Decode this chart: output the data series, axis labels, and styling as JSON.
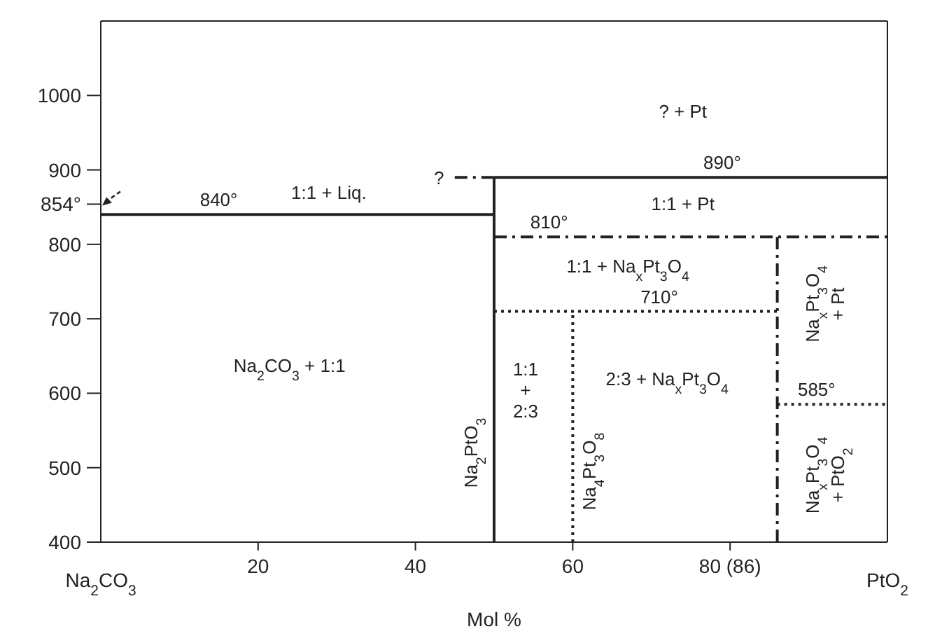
{
  "chart_data": {
    "type": "line",
    "xlabel": "Mol %",
    "xlim": [
      0,
      100
    ],
    "ylim": [
      400,
      1100
    ],
    "xticks": [
      20,
      40,
      60,
      {
        "value": 80,
        "label": "80 (86)"
      }
    ],
    "yticks": [
      400,
      500,
      600,
      700,
      800,
      {
        "value": 854,
        "label": "854°"
      },
      900,
      1000
    ],
    "marker": "none",
    "grid": false,
    "series": [
      {
        "color": "#222222",
        "line_style": "solid",
        "x": [
          0,
          50
        ],
        "values": [
          840,
          840
        ]
      },
      {
        "color": "#222222",
        "line_style": "solid",
        "x": [
          50,
          50
        ],
        "values": [
          400,
          890
        ]
      },
      {
        "color": "#222222",
        "line_style": "solid",
        "x": [
          50,
          100
        ],
        "values": [
          890,
          890
        ]
      },
      {
        "color": "#222222",
        "line_style": "dashed",
        "x": [
          45,
          50
        ],
        "values": [
          890,
          890
        ]
      },
      {
        "color": "#222222",
        "line_style": "dashed",
        "x": [
          50,
          100
        ],
        "values": [
          810,
          810
        ]
      },
      {
        "color": "#222222",
        "line_style": "dotted",
        "x": [
          50,
          86
        ],
        "values": [
          710,
          710
        ]
      },
      {
        "color": "#222222",
        "line_style": "dotted",
        "x": [
          60,
          60
        ],
        "values": [
          400,
          710
        ]
      },
      {
        "color": "#222222",
        "line_style": "dashed",
        "x": [
          86,
          86
        ],
        "values": [
          400,
          810
        ]
      },
      {
        "color": "#222222",
        "line_style": "dotted",
        "x": [
          86,
          100
        ],
        "values": [
          585,
          585
        ]
      }
    ],
    "annotations": [
      "? + Pt",
      {
        "text": "890°",
        "x": 79,
        "y": 890
      },
      "1:1 + Pt",
      {
        "text": "810°",
        "x": 57,
        "y": 810
      },
      "1:1 + Na$_{x}$Pt$_{3}$O$_{4}$",
      {
        "text": "710°",
        "x": 71,
        "y": 710
      },
      "2:3 + Na$_{x}$Pt$_{3}$O$_{4}$",
      "1:1\n+\n2:3",
      {
        "text": "585°",
        "x": 91,
        "y": 585
      },
      "Na$_{2}$PtO$_{3}$",
      "Na$_{4}$Pt$_{3}$O$_{8}$",
      "Na$_{x}$Pt$_{3}$O$_{4}$\n+ Pt",
      "Na$_{x}$Pt$_{3}$O$_{4}$\n+ PtO$_{2}$",
      "Na$_{2}$CO$_{3}$ + 1:1",
      "1:1 + Liq.",
      {
        "text": "840°",
        "x": 15,
        "y": 840
      },
      "?",
      "Na$_{2}$CO$_{3}$",
      "PtO$_{2}$"
    ]
  }
}
